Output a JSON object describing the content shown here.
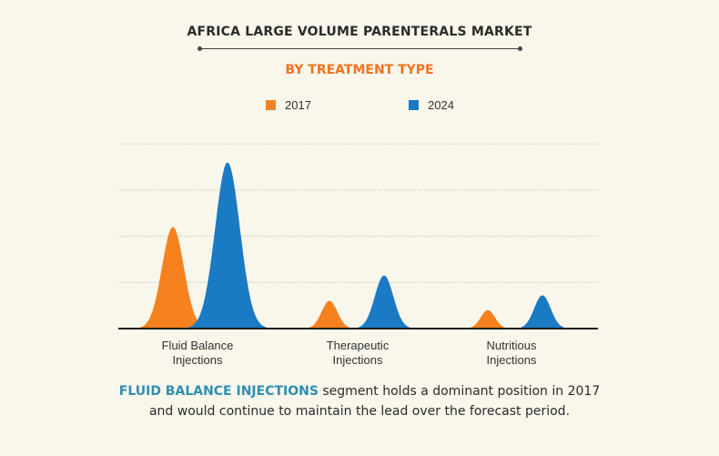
{
  "header": {
    "title": "AFRICA LARGE VOLUME PARENTERALS MARKET",
    "subtitle": "BY TREATMENT TYPE"
  },
  "footnote": {
    "highlight": "FLUID BALANCE INJECTIONS",
    "line1_rest": " segment holds a dominant position in 2017",
    "line2": "and would continue to maintain the lead over the forecast period."
  },
  "colors": {
    "series_2017": "#f6821f",
    "series_2024": "#1a7ac4",
    "subtitle": "#f2731f",
    "highlight": "#2f8fb1",
    "background": "#f9f6ec"
  },
  "chart_data": {
    "type": "area",
    "title": "AFRICA LARGE VOLUME PARENTERALS MARKET",
    "subtitle": "BY TREATMENT TYPE",
    "categories": [
      "Fluid Balance\nInjections",
      "Therapeutic\nInjections",
      "Nutritious\nInjections"
    ],
    "category_lines": [
      [
        "Fluid Balance",
        "Injections"
      ],
      [
        "Therapeutic",
        "Injections"
      ],
      [
        "Nutritious",
        "Injections"
      ]
    ],
    "series": [
      {
        "name": "2017",
        "color": "#f6821f",
        "values": [
          2.2,
          0.6,
          0.4
        ]
      },
      {
        "name": "2024",
        "color": "#1a7ac4",
        "values": [
          3.6,
          1.15,
          0.72
        ]
      }
    ],
    "ylim": [
      0,
      4.2
    ],
    "y_gridlines": [
      1.0,
      2.0,
      3.0,
      4.0
    ],
    "grid": true,
    "y_tick_labels_shown": false,
    "legend_position": "top-center"
  }
}
